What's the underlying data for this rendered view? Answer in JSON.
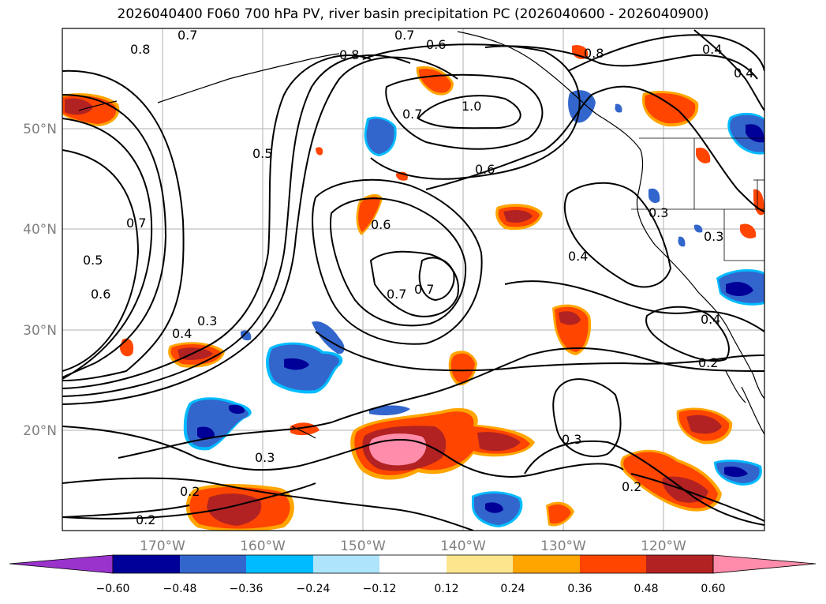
{
  "title": "2026040400 F060 700 hPa PV, river basin precipitation PC (2026040600 - 2026040900)",
  "axes": {
    "lat_labels": [
      "50°N",
      "40°N",
      "30°N",
      "20°N"
    ],
    "lon_labels": [
      "170°W",
      "160°W",
      "150°W",
      "140°W",
      "130°W",
      "120°W"
    ]
  },
  "contour_labels": [
    "0.7",
    "0.8",
    "0.7",
    "0.6",
    "0.8",
    "0.8",
    "0.4",
    "0.4",
    "1.0",
    "0.7",
    "0.5",
    "0.6",
    "0.7",
    "0.5",
    "0.6",
    "0.6",
    "0.7",
    "0.7",
    "0.4",
    "0.3",
    "0.3",
    "0.3",
    "0.4",
    "0.4",
    "0.2",
    "0.3",
    "0.3",
    "0.2",
    "0.2",
    "0.2"
  ],
  "colorbar": {
    "tick_labels": [
      "−0.60",
      "−0.48",
      "−0.36",
      "−0.24",
      "−0.12",
      "0.12",
      "0.24",
      "0.36",
      "0.48",
      "0.60"
    ],
    "colors": [
      "#9933cc",
      "#000099",
      "#3366cc",
      "#00bbff",
      "#aee4fc",
      "#ffffff",
      "#fde58e",
      "#ffa500",
      "#ff4500",
      "#b22222",
      "#ff8caa"
    ]
  }
}
